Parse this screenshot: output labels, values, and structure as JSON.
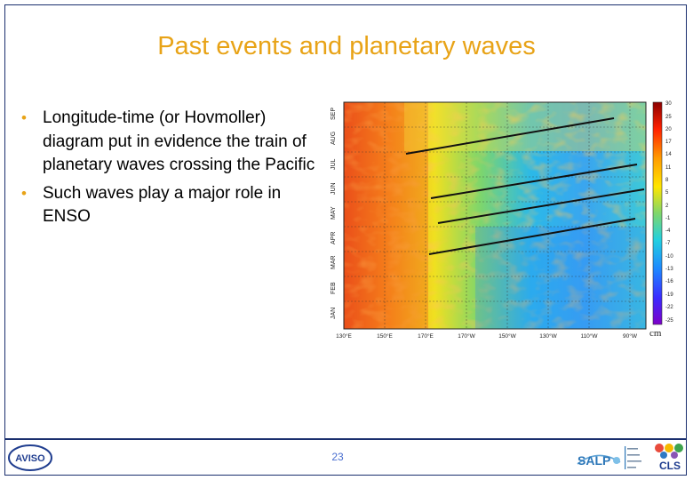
{
  "slide": {
    "title": "Past events and planetary waves",
    "bullets": [
      "Longitude-time (or Hovmoller) diagram put in evidence the train of planetary waves crossing the Pacific",
      "Such waves play a major role in ENSO"
    ],
    "page_number": "23"
  },
  "colors": {
    "title": "#e8a317",
    "frame": "#1a2f6e"
  },
  "figure": {
    "months": [
      "SEP",
      "AUG",
      "JUL",
      "JUN",
      "MAY",
      "APR",
      "MAR",
      "FEB",
      "JAN"
    ],
    "longitudes": [
      "130°E",
      "150°E",
      "170°E",
      "170°W",
      "150°W",
      "130°W",
      "110°W",
      "90°W"
    ],
    "colorbar_ticks": [
      "30",
      "25",
      "20",
      "17",
      "14",
      "11",
      "8",
      "5",
      "2",
      "-1",
      "-4",
      "-7",
      "-10",
      "-13",
      "-16",
      "-19",
      "-22",
      "-25"
    ],
    "colorbar_unit": "cm"
  },
  "logos": {
    "left": "AVISO",
    "mid": "SALP",
    "right": "CLS"
  }
}
